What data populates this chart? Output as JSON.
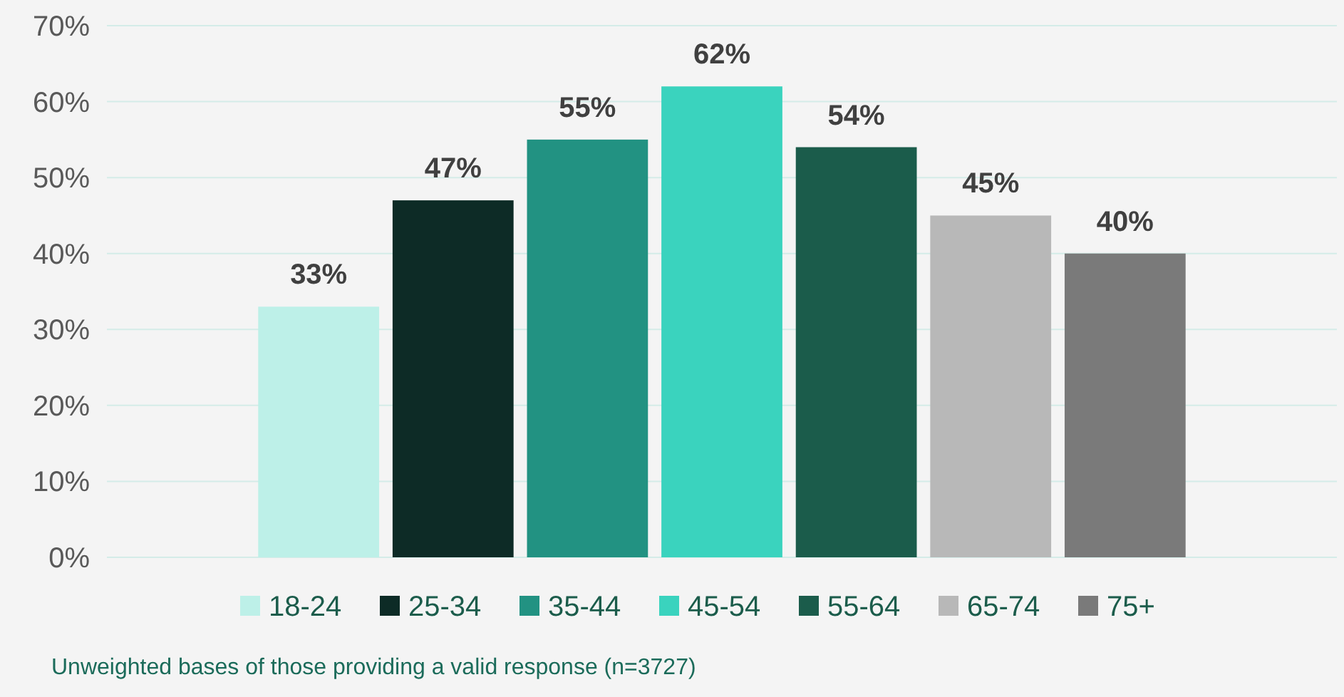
{
  "chart_data": {
    "type": "bar",
    "categories": [
      null
    ],
    "series": [
      {
        "name": "18-24",
        "color": "#bdf0e8",
        "values": [
          33
        ],
        "value_labels": [
          "33%"
        ]
      },
      {
        "name": "25-34",
        "color": "#0d2b26",
        "values": [
          47
        ],
        "value_labels": [
          "47%"
        ]
      },
      {
        "name": "35-44",
        "color": "#229282",
        "values": [
          55
        ],
        "value_labels": [
          "55%"
        ]
      },
      {
        "name": "45-54",
        "color": "#3ad3be",
        "values": [
          62
        ],
        "value_labels": [
          "62%"
        ]
      },
      {
        "name": "55-64",
        "color": "#1b5c4b",
        "values": [
          54
        ],
        "value_labels": [
          "54%"
        ]
      },
      {
        "name": "65-74",
        "color": "#b8b8b8",
        "values": [
          45
        ],
        "value_labels": [
          "45%"
        ]
      },
      {
        "name": "75+",
        "color": "#7a7a7a",
        "values": [
          40
        ],
        "value_labels": [
          "40%"
        ]
      }
    ],
    "ylim": [
      0,
      70
    ],
    "yticks": [
      {
        "value": 0,
        "label": "0%"
      },
      {
        "value": 10,
        "label": "10%"
      },
      {
        "value": 20,
        "label": "20%"
      },
      {
        "value": 30,
        "label": "30%"
      },
      {
        "value": 40,
        "label": "40%"
      },
      {
        "value": 50,
        "label": "50%"
      },
      {
        "value": 60,
        "label": "60%"
      },
      {
        "value": 70,
        "label": "70%"
      }
    ],
    "grid": "y",
    "legend": "bottom",
    "annotations": [
      "Unweighted bases of those providing a valid response (n=3727)"
    ]
  }
}
